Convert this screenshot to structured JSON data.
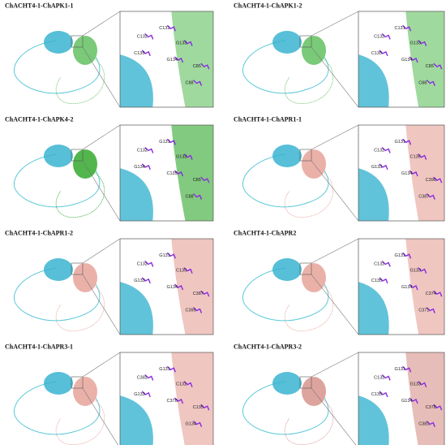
{
  "panels": [
    {
      "title": "ChACHT4-1-ChAPK1-1",
      "partner_color": "#6cc46a",
      "residues": [
        "C131",
        "C132",
        "G133",
        "C135",
        "G134",
        "C85",
        "C88"
      ]
    },
    {
      "title": "ChACHT4-1-ChAPK1-2",
      "partner_color": "#6cc46a",
      "residues": [
        "C131",
        "C132",
        "G133",
        "C135",
        "G134",
        "C85",
        "C88"
      ]
    },
    {
      "title": "ChACHT4-1-ChAPK4-2",
      "partner_color": "#3fae3a",
      "residues": [
        "G131",
        "C132",
        "G133",
        "G134",
        "C135",
        "C85",
        "C88"
      ]
    },
    {
      "title": "ChACHT4-1-ChAPR1-1",
      "partner_color": "#e8a8a0",
      "residues": [
        "G131",
        "C132",
        "C135",
        "G133",
        "G134",
        "C390",
        "C387"
      ]
    },
    {
      "title": "ChACHT4-1-ChAPR1-2",
      "partner_color": "#e8a8a0",
      "residues": [
        "G131",
        "C132",
        "C135",
        "G133",
        "G134",
        "C387",
        "C390"
      ]
    },
    {
      "title": "ChACHT4-1-ChAPR2",
      "partner_color": "#e8a8a0",
      "residues": [
        "G131",
        "C132",
        "G133",
        "C135",
        "G134",
        "C374",
        "C371"
      ]
    },
    {
      "title": "ChACHT4-1-ChAPR3-1",
      "partner_color": "#e8a8a0",
      "residues": [
        "G131",
        "C382",
        "C132",
        "G133",
        "C378",
        "C135",
        "G134"
      ]
    },
    {
      "title": "ChACHT4-1-ChAPR3-2",
      "partner_color": "#d99a92",
      "residues": [
        "G131",
        "C132",
        "G133",
        "C135",
        "G134",
        "C378",
        "C381"
      ]
    }
  ]
}
